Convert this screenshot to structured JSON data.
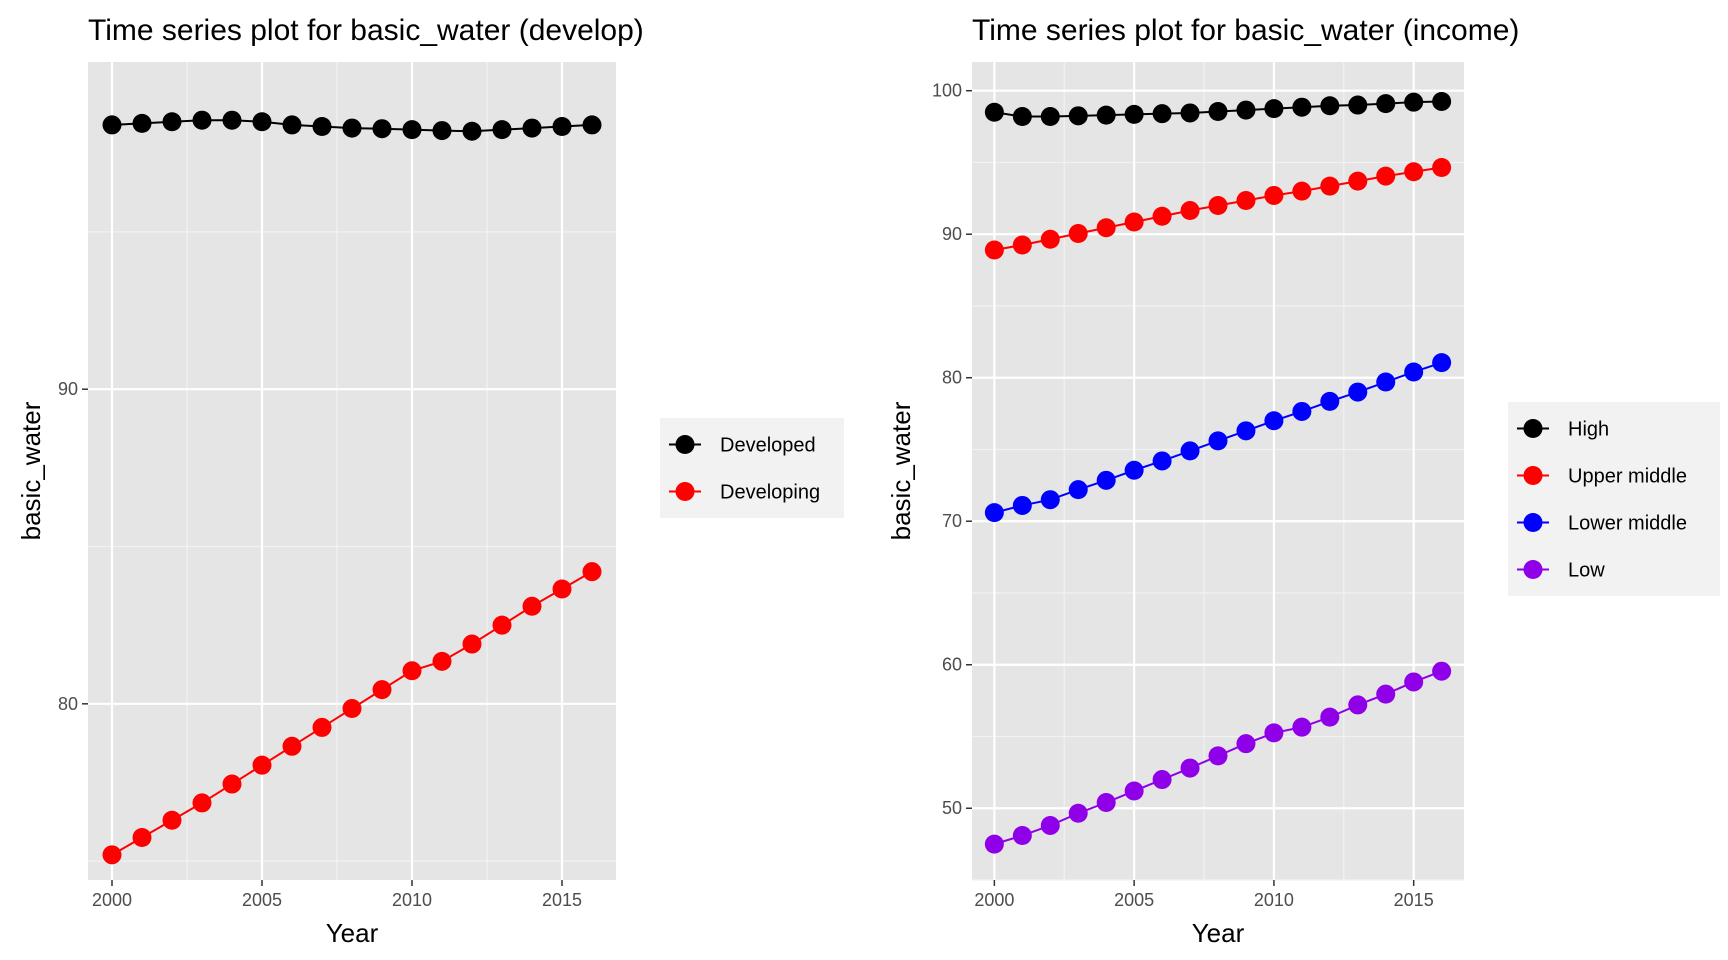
{
  "chart_data": [
    {
      "type": "line",
      "title": "Time series plot for basic_water (develop)",
      "xlabel": "Year",
      "ylabel": "basic_water",
      "xlim": [
        1999.2,
        2016.8
      ],
      "ylim": [
        74.4,
        100.4
      ],
      "x_ticks": [
        2000,
        2005,
        2010,
        2015
      ],
      "y_ticks": [
        80,
        90
      ],
      "grid": true,
      "legend_position": "right",
      "x": [
        2000,
        2001,
        2002,
        2003,
        2004,
        2005,
        2006,
        2007,
        2008,
        2009,
        2010,
        2011,
        2012,
        2013,
        2014,
        2015,
        2016
      ],
      "series": [
        {
          "name": "Developed",
          "color": "#000000",
          "values": [
            98.4,
            98.45,
            98.5,
            98.55,
            98.55,
            98.5,
            98.4,
            98.35,
            98.3,
            98.28,
            98.25,
            98.22,
            98.2,
            98.25,
            98.3,
            98.35,
            98.4
          ]
        },
        {
          "name": "Developing",
          "color": "#ff0000",
          "values": [
            75.2,
            75.75,
            76.3,
            76.85,
            77.45,
            78.05,
            78.65,
            79.25,
            79.85,
            80.45,
            81.05,
            81.35,
            81.9,
            82.5,
            83.1,
            83.65,
            84.2
          ]
        }
      ]
    },
    {
      "type": "line",
      "title": "Time series plot for basic_water (income)",
      "xlabel": "Year",
      "ylabel": "basic_water",
      "xlim": [
        1999.2,
        2016.8
      ],
      "ylim": [
        45,
        102
      ],
      "x_ticks": [
        2000,
        2005,
        2010,
        2015
      ],
      "y_ticks": [
        50,
        60,
        70,
        80,
        90,
        100
      ],
      "grid": true,
      "legend_position": "right",
      "x": [
        2000,
        2001,
        2002,
        2003,
        2004,
        2005,
        2006,
        2007,
        2008,
        2009,
        2010,
        2011,
        2012,
        2013,
        2014,
        2015,
        2016
      ],
      "series": [
        {
          "name": "High",
          "color": "#000000",
          "values": [
            98.5,
            98.2,
            98.2,
            98.25,
            98.3,
            98.35,
            98.4,
            98.45,
            98.55,
            98.65,
            98.75,
            98.85,
            98.95,
            99.0,
            99.1,
            99.2,
            99.25
          ]
        },
        {
          "name": "Upper middle",
          "color": "#ff0000",
          "values": [
            88.9,
            89.25,
            89.65,
            90.05,
            90.45,
            90.85,
            91.25,
            91.65,
            92.0,
            92.35,
            92.7,
            93.0,
            93.35,
            93.7,
            94.05,
            94.35,
            94.65
          ]
        },
        {
          "name": "Lower middle",
          "color": "#0000ff",
          "values": [
            70.6,
            71.1,
            71.5,
            72.2,
            72.85,
            73.55,
            74.2,
            74.9,
            75.6,
            76.3,
            77.0,
            77.65,
            78.35,
            79.0,
            79.7,
            80.4,
            81.05
          ]
        },
        {
          "name": "Low",
          "color": "#8f00e8",
          "values": [
            47.5,
            48.1,
            48.8,
            49.65,
            50.4,
            51.2,
            52.0,
            52.8,
            53.65,
            54.5,
            55.25,
            55.65,
            56.35,
            57.2,
            57.95,
            58.8,
            59.55
          ]
        }
      ]
    }
  ]
}
